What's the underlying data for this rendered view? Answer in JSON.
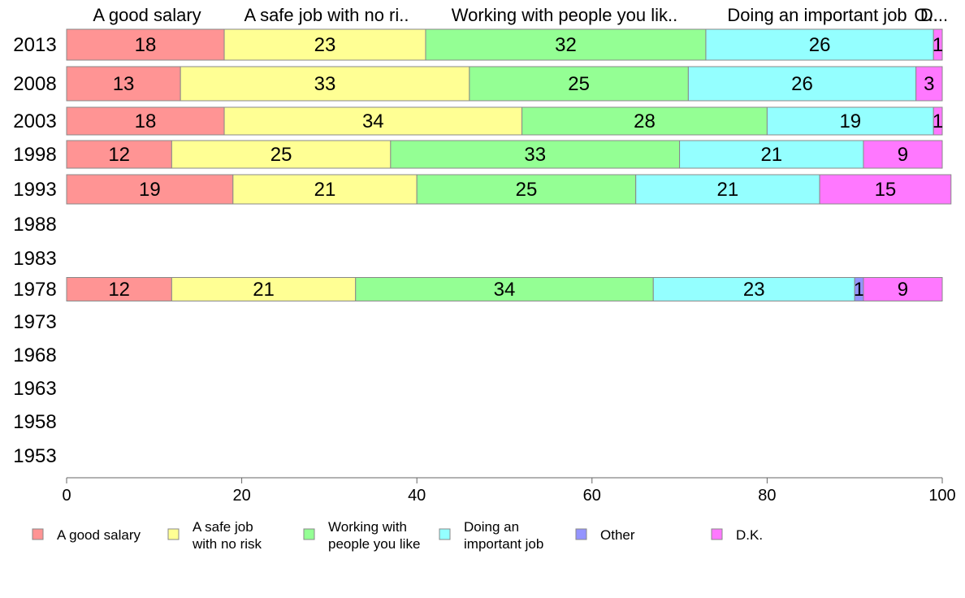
{
  "chart_data": {
    "type": "bar",
    "orientation": "horizontal",
    "stacked": true,
    "categories": [
      "2013",
      "2008",
      "2003",
      "1998",
      "1993",
      "1988",
      "1983",
      "1978",
      "1973",
      "1968",
      "1963",
      "1958",
      "1953"
    ],
    "series": [
      {
        "name": "A good salary",
        "legend_label": [
          "A good salary"
        ],
        "color": "#ff9494",
        "values": [
          18,
          13,
          18,
          12,
          19,
          null,
          null,
          12,
          null,
          null,
          null,
          null,
          null
        ]
      },
      {
        "name": "A safe job with no risk",
        "legend_label": [
          "A safe job",
          "with no risk"
        ],
        "color": "#ffff94",
        "values": [
          23,
          33,
          34,
          25,
          21,
          null,
          null,
          21,
          null,
          null,
          null,
          null,
          null
        ]
      },
      {
        "name": "Working with people you like",
        "legend_label": [
          "Working with",
          "people you like"
        ],
        "color": "#94ff94",
        "values": [
          32,
          25,
          28,
          33,
          25,
          null,
          null,
          34,
          null,
          null,
          null,
          null,
          null
        ]
      },
      {
        "name": "Doing an important job",
        "legend_label": [
          "Doing an",
          "important job"
        ],
        "color": "#94ffff",
        "values": [
          26,
          26,
          19,
          21,
          21,
          null,
          null,
          23,
          null,
          null,
          null,
          null,
          null
        ]
      },
      {
        "name": "Other",
        "legend_label": [
          "Other"
        ],
        "color": "#9494ff",
        "values": [
          0,
          0,
          0,
          0,
          0,
          null,
          null,
          1,
          null,
          null,
          null,
          null,
          null
        ]
      },
      {
        "name": "D.K.",
        "legend_label": [
          "D.K."
        ],
        "color": "#ff78ff",
        "values": [
          1,
          3,
          1,
          9,
          15,
          null,
          null,
          9,
          null,
          null,
          null,
          null,
          null
        ]
      }
    ],
    "top_labels": [
      "A good salary",
      "A safe job with no ri..",
      "Working with people you lik..",
      "Doing an important job",
      "O..",
      "D..."
    ],
    "xlim": [
      0,
      100
    ],
    "xticks": [
      0,
      20,
      40,
      60,
      80,
      100
    ],
    "legend_position": "bottom",
    "grid": false
  }
}
